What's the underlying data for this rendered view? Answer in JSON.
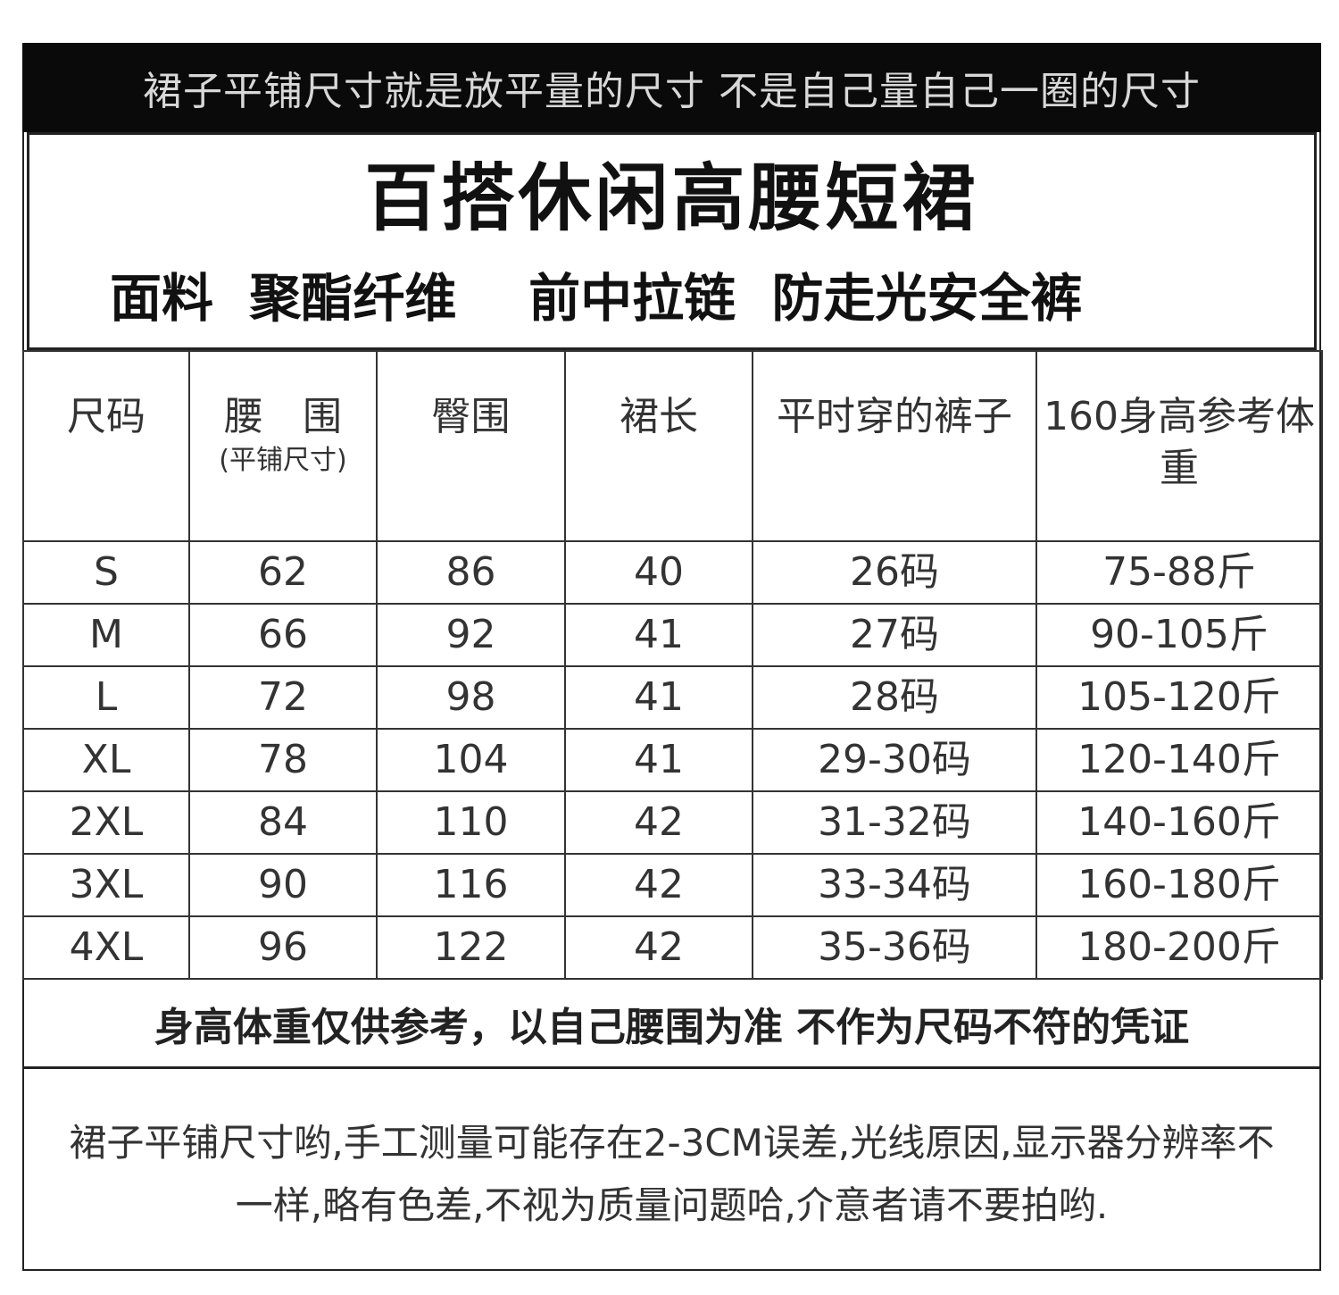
{
  "banner": "裙子平铺尺寸就是放平量的尺寸 不是自己量自己一圈的尺寸",
  "title": "百搭休闲高腰短裙",
  "subtitle": "面料  聚酯纤维    前中拉链  防走光安全裤",
  "table": {
    "headers": [
      {
        "label": "尺码"
      },
      {
        "label": "腰　围",
        "sub": "(平铺尺寸)"
      },
      {
        "label": "臀围"
      },
      {
        "label": "裙长"
      },
      {
        "label": "平时穿的裤子"
      },
      {
        "label": "160身高参考体重"
      }
    ],
    "rows": [
      [
        "S",
        "62",
        "86",
        "40",
        "26码",
        "75-88斤"
      ],
      [
        "M",
        "66",
        "92",
        "41",
        "27码",
        "90-105斤"
      ],
      [
        "L",
        "72",
        "98",
        "41",
        "28码",
        "105-120斤"
      ],
      [
        "XL",
        "78",
        "104",
        "41",
        "29-30码",
        "120-140斤"
      ],
      [
        "2XL",
        "84",
        "110",
        "42",
        "31-32码",
        "140-160斤"
      ],
      [
        "3XL",
        "90",
        "116",
        "42",
        "33-34码",
        "160-180斤"
      ],
      [
        "4XL",
        "96",
        "122",
        "42",
        "35-36码",
        "180-200斤"
      ]
    ]
  },
  "note": "身高体重仅供参考，以自己腰围为准 不作为尺码不符的凭证",
  "disclaimer": "裙子平铺尺寸哟,手工测量可能存在2-3CM误差,光线原因,显示器分辨率不一样,略有色差,不视为质量问题哈,介意者请不要拍哟."
}
